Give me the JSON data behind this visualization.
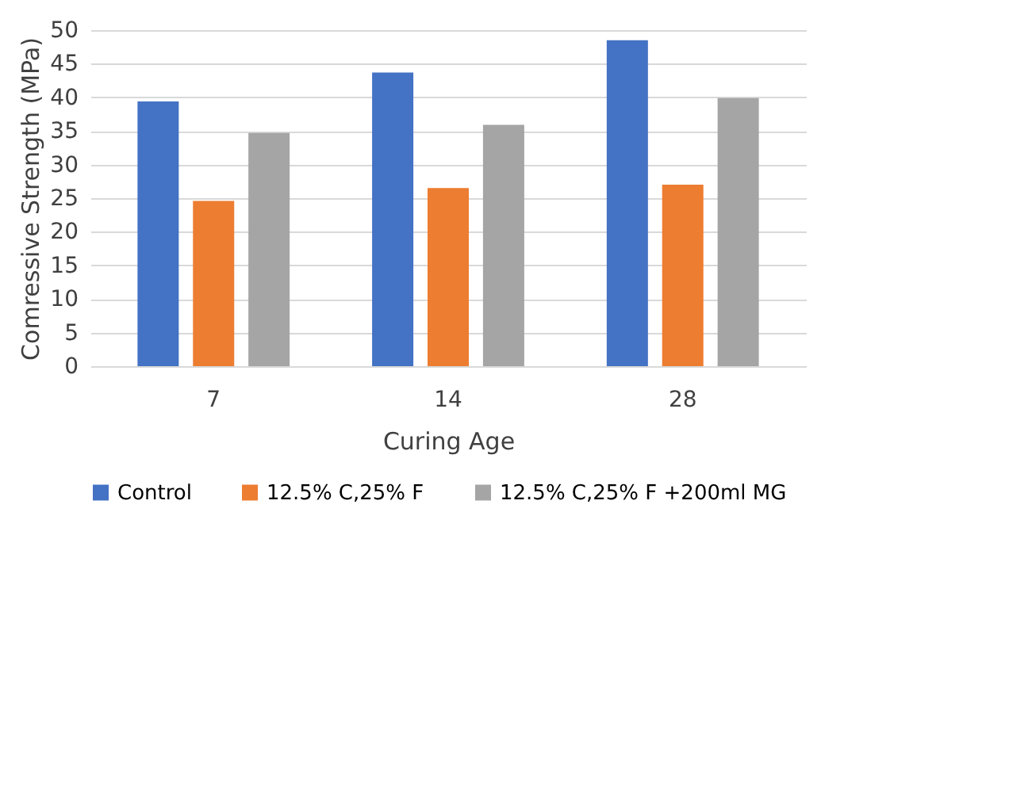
{
  "chart_data": {
    "type": "bar",
    "xlabel": "Curing Age",
    "ylabel": "Comressive Strength (MPa)",
    "categories": [
      "7",
      "14",
      "28"
    ],
    "series": [
      {
        "name": "Control",
        "color": "#4472c4",
        "values": [
          39.4,
          43.7,
          48.5
        ]
      },
      {
        "name": "12.5% C,25% F",
        "color": "#ed7d31",
        "values": [
          24.6,
          26.5,
          27.0
        ]
      },
      {
        "name": "12.5% C,25% F +200ml MG",
        "color": "#a5a5a5",
        "values": [
          34.7,
          35.9,
          39.9
        ]
      }
    ],
    "ylim": [
      0,
      50
    ],
    "yticks": [
      0,
      5,
      10,
      15,
      20,
      25,
      30,
      35,
      40,
      45,
      50
    ],
    "grid": "y",
    "legend": "bottom"
  }
}
